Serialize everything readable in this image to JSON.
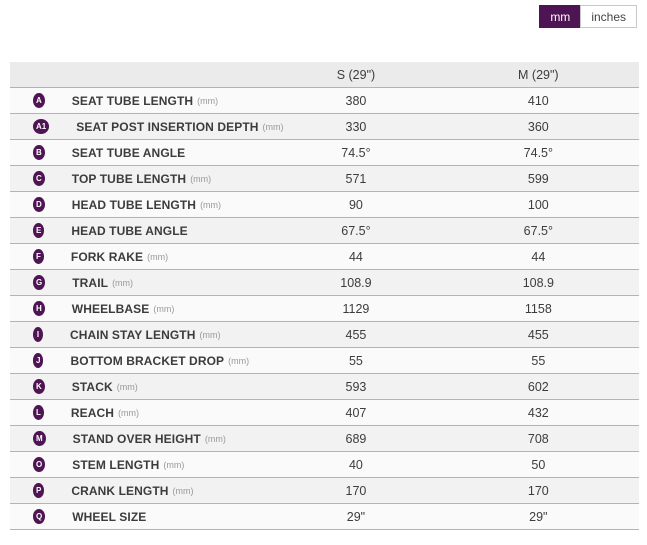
{
  "unit_toggle": {
    "mm_label": "mm",
    "inches_label": "inches",
    "selected": "mm"
  },
  "table": {
    "size_columns": [
      "S (29\")",
      "M (29\")"
    ],
    "rows": [
      {
        "badge": "A",
        "label": "SEAT TUBE LENGTH",
        "unit": "(mm)",
        "values": [
          "380",
          "410"
        ]
      },
      {
        "badge": "A1",
        "label": "SEAT POST INSERTION DEPTH",
        "unit": "(mm)",
        "values": [
          "330",
          "360"
        ]
      },
      {
        "badge": "B",
        "label": "SEAT TUBE ANGLE",
        "unit": "",
        "values": [
          "74.5°",
          "74.5°"
        ]
      },
      {
        "badge": "C",
        "label": "TOP TUBE LENGTH",
        "unit": "(mm)",
        "values": [
          "571",
          "599"
        ]
      },
      {
        "badge": "D",
        "label": "HEAD TUBE LENGTH",
        "unit": "(mm)",
        "values": [
          "90",
          "100"
        ]
      },
      {
        "badge": "E",
        "label": "HEAD TUBE ANGLE",
        "unit": "",
        "values": [
          "67.5°",
          "67.5°"
        ]
      },
      {
        "badge": "F",
        "label": "FORK RAKE",
        "unit": "(mm)",
        "values": [
          "44",
          "44"
        ]
      },
      {
        "badge": "G",
        "label": "TRAIL",
        "unit": "(mm)",
        "values": [
          "108.9",
          "108.9"
        ]
      },
      {
        "badge": "H",
        "label": "WHEELBASE",
        "unit": "(mm)",
        "values": [
          "1129",
          "1158"
        ]
      },
      {
        "badge": "I",
        "label": "CHAIN STAY LENGTH",
        "unit": "(mm)",
        "values": [
          "455",
          "455"
        ]
      },
      {
        "badge": "J",
        "label": "BOTTOM BRACKET DROP",
        "unit": "(mm)",
        "values": [
          "55",
          "55"
        ]
      },
      {
        "badge": "K",
        "label": "STACK",
        "unit": "(mm)",
        "values": [
          "593",
          "602"
        ]
      },
      {
        "badge": "L",
        "label": "REACH",
        "unit": "(mm)",
        "values": [
          "407",
          "432"
        ]
      },
      {
        "badge": "M",
        "label": "STAND OVER HEIGHT",
        "unit": "(mm)",
        "values": [
          "689",
          "708"
        ]
      },
      {
        "badge": "O",
        "label": "STEM LENGTH",
        "unit": "(mm)",
        "values": [
          "40",
          "50"
        ]
      },
      {
        "badge": "P",
        "label": "CRANK LENGTH",
        "unit": "(mm)",
        "values": [
          "170",
          "170"
        ]
      },
      {
        "badge": "Q",
        "label": "WHEEL SIZE",
        "unit": "",
        "values": [
          "29\"",
          "29\""
        ]
      }
    ]
  },
  "colors": {
    "accent_purple": "#4e1453",
    "header_bg": "#ebebeb",
    "row_bg": "#fafafa",
    "row_alt_bg": "#f2f2f2",
    "separator": "#b3b3b3"
  }
}
